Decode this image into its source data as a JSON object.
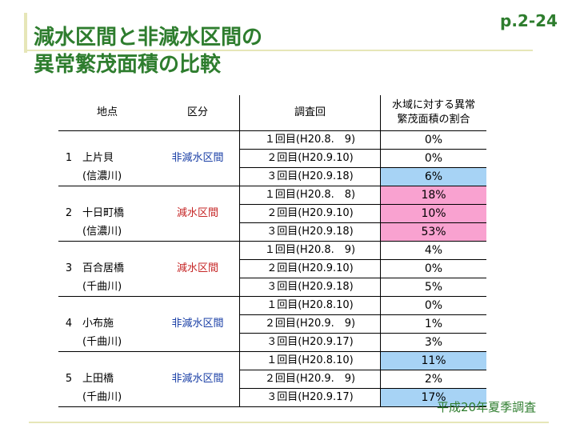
{
  "header": {
    "title_line1": "減水区間と非減水区間の",
    "title_line2": "異常繁茂面積の比較",
    "page_number": "p.2-24"
  },
  "table": {
    "columns": [
      "地点",
      "区分",
      "調査回",
      "水域に対する異常",
      "繁茂面積の割合"
    ],
    "groups": [
      {
        "no": "1",
        "site": "上片貝",
        "river": "(信濃川)",
        "class": "非減水区間",
        "class_color": "#1a3fa6",
        "rows": [
          {
            "survey": "１回目(H20.8.　9)",
            "pct": "0%",
            "highlight": ""
          },
          {
            "survey": "２回目(H20.9.10)",
            "pct": "0%",
            "highlight": ""
          },
          {
            "survey": "３回目(H20.9.18)",
            "pct": "6%",
            "highlight": "blue"
          }
        ]
      },
      {
        "no": "2",
        "site": "十日町橋",
        "river": "(信濃川)",
        "class": "減水区間",
        "class_color": "#c62828",
        "rows": [
          {
            "survey": "１回目(H20.8.　8)",
            "pct": "18%",
            "highlight": "pink"
          },
          {
            "survey": "２回目(H20.9.10)",
            "pct": "10%",
            "highlight": "pink"
          },
          {
            "survey": "３回目(H20.9.18)",
            "pct": "53%",
            "highlight": "pink"
          }
        ]
      },
      {
        "no": "3",
        "site": "百合居橋",
        "river": "(千曲川)",
        "class": "減水区間",
        "class_color": "#c62828",
        "rows": [
          {
            "survey": "１回目(H20.8.　9)",
            "pct": "4%",
            "highlight": ""
          },
          {
            "survey": "２回目(H20.9.10)",
            "pct": "0%",
            "highlight": ""
          },
          {
            "survey": "３回目(H20.9.18)",
            "pct": "5%",
            "highlight": ""
          }
        ]
      },
      {
        "no": "4",
        "site": "小布施",
        "river": "(千曲川)",
        "class": "非減水区間",
        "class_color": "#1a3fa6",
        "rows": [
          {
            "survey": "１回目(H20.8.10)",
            "pct": "0%",
            "highlight": ""
          },
          {
            "survey": "２回目(H20.9.　9)",
            "pct": "1%",
            "highlight": ""
          },
          {
            "survey": "３回目(H20.9.17)",
            "pct": "3%",
            "highlight": ""
          }
        ]
      },
      {
        "no": "5",
        "site": "上田橋",
        "river": "(千曲川)",
        "class": "非減水区間",
        "class_color": "#1a3fa6",
        "rows": [
          {
            "survey": "１回目(H20.8.10)",
            "pct": "11%",
            "highlight": "blue"
          },
          {
            "survey": "２回目(H20.9.　9)",
            "pct": "2%",
            "highlight": ""
          },
          {
            "survey": "３回目(H20.9.17)",
            "pct": "17%",
            "highlight": "blue"
          }
        ]
      }
    ]
  },
  "footer": {
    "survey_note": "平成20年夏季調査"
  },
  "colors": {
    "title_green": "#2e7d2e",
    "highlight_blue": "#a7d3f5",
    "highlight_pink": "#f9a2d0"
  }
}
